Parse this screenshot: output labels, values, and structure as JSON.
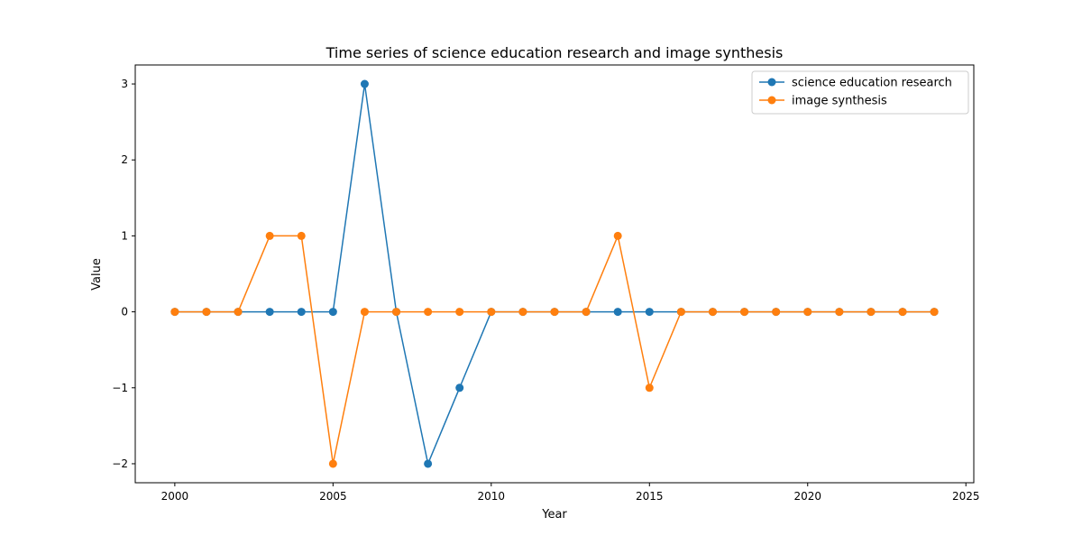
{
  "chart_data": {
    "type": "line",
    "title": "Time series of science education research and image synthesis",
    "xlabel": "Year",
    "ylabel": "Value",
    "x": [
      2000,
      2001,
      2002,
      2003,
      2004,
      2005,
      2006,
      2007,
      2008,
      2009,
      2010,
      2011,
      2012,
      2013,
      2014,
      2015,
      2016,
      2017,
      2018,
      2019,
      2020,
      2021,
      2022,
      2023,
      2024
    ],
    "xlim": [
      1998.75,
      2025.25
    ],
    "ylim": [
      -2.25,
      3.25
    ],
    "xticks": [
      2000,
      2005,
      2010,
      2015,
      2020,
      2025
    ],
    "yticks": [
      -2,
      -1,
      0,
      1,
      2,
      3
    ],
    "grid": false,
    "legend_position": "upper right",
    "series": [
      {
        "name": "science education research",
        "color": "#1f77b4",
        "marker": "circle",
        "values": [
          0,
          0,
          0,
          0,
          0,
          0,
          3,
          0,
          -2,
          -1,
          0,
          0,
          0,
          0,
          0,
          0,
          0,
          0,
          0,
          0,
          0,
          0,
          0,
          0,
          0
        ]
      },
      {
        "name": "image synthesis",
        "color": "#ff7f0e",
        "marker": "circle",
        "values": [
          0,
          0,
          0,
          1,
          1,
          -2,
          0,
          0,
          0,
          0,
          0,
          0,
          0,
          0,
          1,
          -1,
          0,
          0,
          0,
          0,
          0,
          0,
          0,
          0,
          0
        ]
      }
    ]
  }
}
